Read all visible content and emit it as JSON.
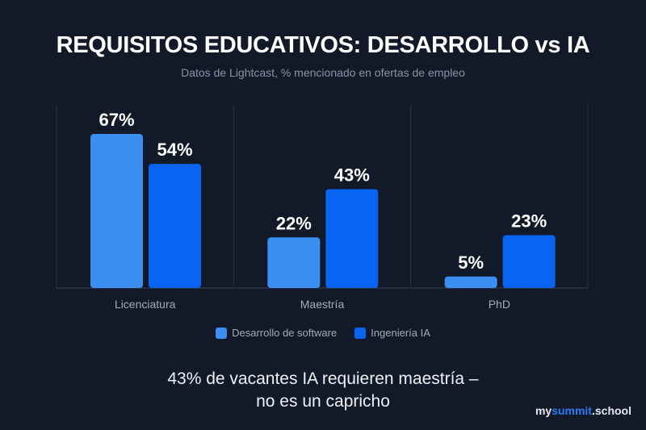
{
  "title": "REQUISITOS EDUCATIVOS: DESARROLLO vs IA",
  "subtitle": "Datos de Lightcast, % mencionado en ofertas de empleo",
  "takeaway_line1": "43% de vacantes IA requieren maestría –",
  "takeaway_line2": "no es un capricho",
  "logo": {
    "prefix": "my",
    "accent": "summit",
    "suffix": ".school"
  },
  "colors": {
    "background": "#121a29",
    "software": "#3d8ef2",
    "ai": "#0a64f2"
  },
  "chart_data": {
    "type": "bar",
    "title": "REQUISITOS EDUCATIVOS: DESARROLLO vs IA",
    "subtitle": "Datos de Lightcast, % mencionado en ofertas de empleo",
    "categories": [
      "Licenciatura",
      "Maestría",
      "PhD"
    ],
    "series": [
      {
        "name": "Desarrollo de software",
        "values": [
          67,
          22,
          5
        ],
        "labels": [
          "67%",
          "22%",
          "5%"
        ],
        "color": "#3d8ef2"
      },
      {
        "name": "Ingeniería IA",
        "values": [
          54,
          43,
          23
        ],
        "labels": [
          "54%",
          "43%",
          "23%"
        ],
        "color": "#0a64f2"
      }
    ],
    "unit": "%",
    "ylim": [
      0,
      75
    ],
    "grid": false,
    "legend": "bottom"
  }
}
